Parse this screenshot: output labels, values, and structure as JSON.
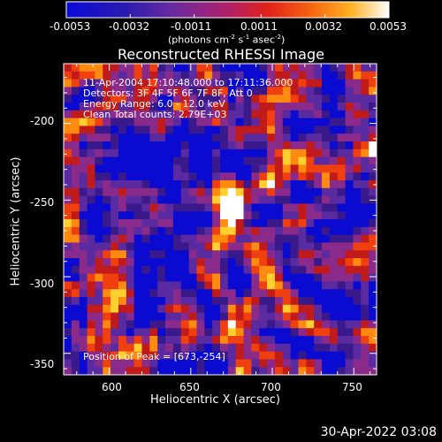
{
  "chart_data": {
    "type": "heatmap",
    "title": "Reconstructed RHESSI Image",
    "xlabel": "Heliocentric X (arcsec)",
    "ylabel": "Heliocentric Y (arcsec)",
    "xlim": [
      572,
      764
    ],
    "ylim": [
      -364,
      -161
    ],
    "x_ticks": [
      "600",
      "650",
      "700",
      "750"
    ],
    "y_ticks": [
      "-200",
      "-250",
      "-300",
      "-350"
    ],
    "colorbar": {
      "range": [
        -0.0053,
        0.0053
      ],
      "tick_labels": [
        "-0.0053",
        "-0.0032",
        "-0.0011",
        "0.0011",
        "0.0032",
        "0.0053"
      ],
      "units_text": "(photons cm",
      "units_exp1": "-2",
      "units_mid": " s",
      "units_exp2": "-1",
      "units_mid2": " asec",
      "units_exp3": "-2",
      "units_end": ")"
    },
    "peak": {
      "x": 673,
      "y": -254,
      "value": 0.0053
    },
    "info_lines": [
      "11-Apr-2004 17:10:48.000 to 17:11:36.000",
      "Detectors: 3F 4F 5F 6F 7F 8F, Att 0",
      "Energy Range: 6.0 - 12.0 keV",
      "Clean     Total counts: 2.79E+03"
    ],
    "peak_text": "Position of Peak = [673,-254]",
    "colors": [
      "#0a0ad0",
      "#3a1a8a",
      "#5a2aa0",
      "#8a2a8a",
      "#c01a1a",
      "#f04010",
      "#ff8a10",
      "#ffd030",
      "#ffffff"
    ]
  },
  "footer": {
    "timestamp": "30-Apr-2022 03:08"
  }
}
